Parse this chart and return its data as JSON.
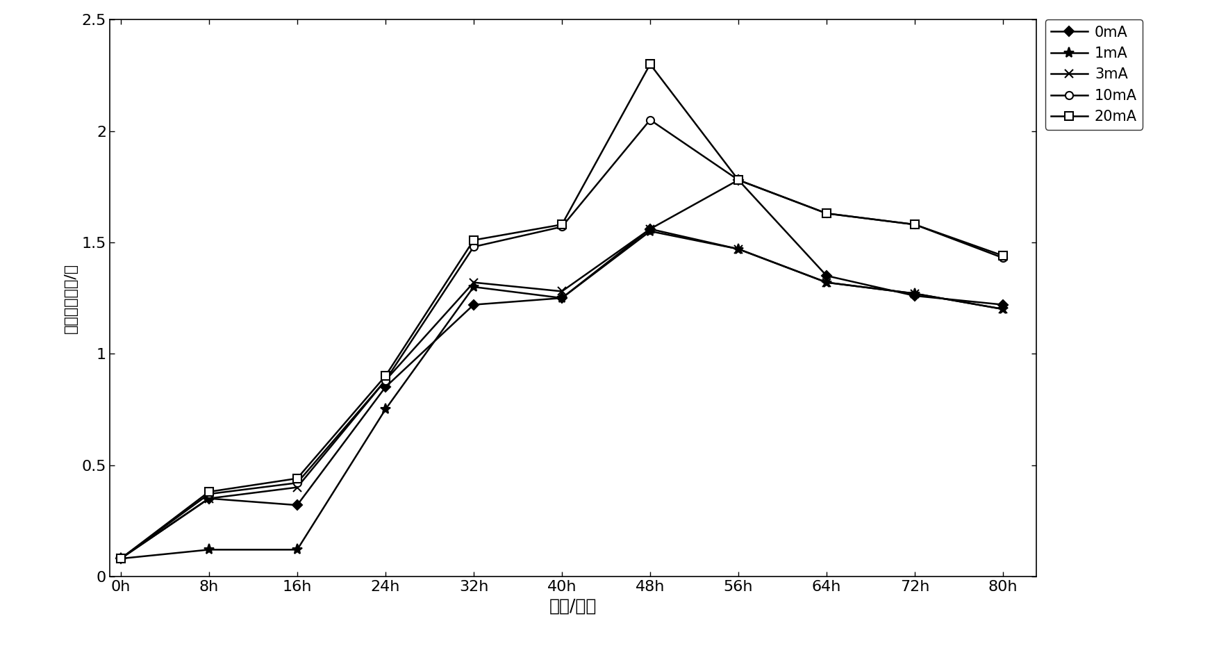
{
  "x_values": [
    0,
    8,
    16,
    24,
    32,
    40,
    48,
    56,
    64,
    72,
    80
  ],
  "x_labels": [
    "0h",
    "8h",
    "16h",
    "24h",
    "32h",
    "40h",
    "48h",
    "56h",
    "64h",
    "72h",
    "80h"
  ],
  "series": [
    {
      "label": "0mA",
      "marker": "D",
      "markersize": 7,
      "markerfacecolor": "black",
      "values": [
        0.08,
        0.35,
        0.32,
        0.85,
        1.22,
        1.25,
        1.56,
        1.78,
        1.35,
        1.26,
        1.22
      ]
    },
    {
      "label": "1mA",
      "marker": "*",
      "markersize": 11,
      "markerfacecolor": "black",
      "values": [
        0.08,
        0.12,
        0.12,
        0.75,
        1.3,
        1.25,
        1.55,
        1.47,
        1.32,
        1.27,
        1.2
      ]
    },
    {
      "label": "3mA",
      "marker": "x",
      "markersize": 9,
      "markerfacecolor": "black",
      "values": [
        0.08,
        0.35,
        0.4,
        0.88,
        1.32,
        1.28,
        1.56,
        1.47,
        1.32,
        1.27,
        1.2
      ]
    },
    {
      "label": "10mA",
      "marker": "o",
      "markersize": 8,
      "markerfacecolor": "white",
      "values": [
        0.08,
        0.37,
        0.42,
        0.88,
        1.48,
        1.57,
        2.05,
        1.78,
        1.63,
        1.58,
        1.43
      ]
    },
    {
      "label": "20mA",
      "marker": "s",
      "markersize": 8,
      "markerfacecolor": "white",
      "values": [
        0.08,
        0.38,
        0.44,
        0.9,
        1.51,
        1.58,
        2.3,
        1.78,
        1.63,
        1.58,
        1.44
      ]
    }
  ],
  "xlabel": "时间/小时",
  "ylabel": "菌体累积数量/亿",
  "ylim": [
    0,
    2.5
  ],
  "yticks": [
    0,
    0.5,
    1.0,
    1.5,
    2.0,
    2.5
  ],
  "ytick_labels": [
    "0",
    "0.5",
    "1",
    "1.5",
    "2",
    "2.5"
  ],
  "line_color": "#000000",
  "background_color": "#ffffff",
  "xlabel_fontsize": 18,
  "ylabel_fontsize": 16,
  "tick_fontsize": 16,
  "legend_fontsize": 15
}
